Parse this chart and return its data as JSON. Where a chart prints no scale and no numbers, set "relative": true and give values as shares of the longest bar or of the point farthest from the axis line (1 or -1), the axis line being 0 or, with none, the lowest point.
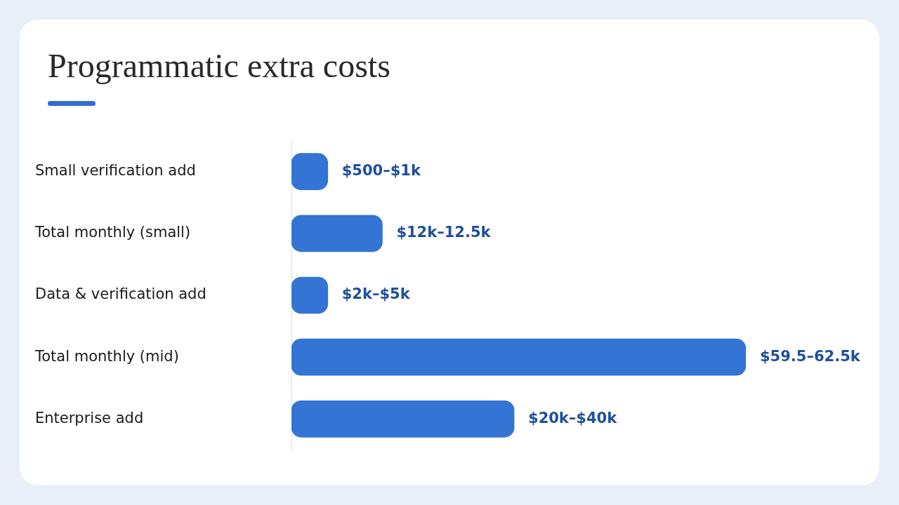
{
  "chart_data": {
    "type": "bar",
    "orientation": "horizontal",
    "relative": true,
    "title": "Programmatic extra costs",
    "categories": [
      "Small verification add",
      "Total monthly (small)",
      "Data & verification add",
      "Total monthly (mid)",
      "Enterprise add"
    ],
    "values": [
      0.08,
      0.2,
      0.08,
      1,
      0.49
    ],
    "annotations": [
      "$500–$1k",
      "$12k–12.5k",
      "$2k–$5k",
      "$59.5–62.5k",
      "$20k–$40k"
    ],
    "color": "#3474d4"
  }
}
